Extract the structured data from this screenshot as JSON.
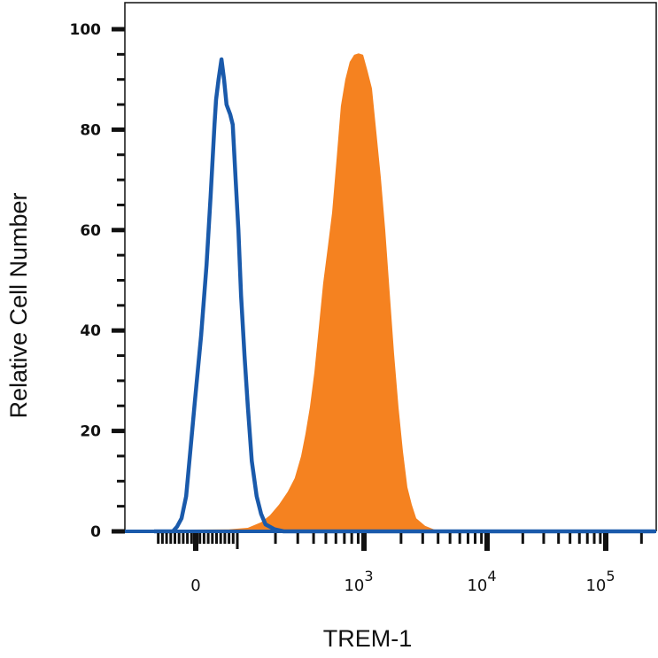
{
  "chart_data": {
    "type": "area",
    "title": "",
    "xlabel": "TREM-1",
    "ylabel": "Relative Cell Number",
    "x_scale": "logicle",
    "xlim": [
      -100,
      260000
    ],
    "ylim": [
      0,
      100
    ],
    "grid": false,
    "y_ticks": [
      0,
      20,
      40,
      60,
      80,
      100
    ],
    "x_ticks": [
      {
        "value": 0,
        "base": "0",
        "exp": ""
      },
      {
        "value": 1000,
        "base": "10",
        "exp": "3"
      },
      {
        "value": 10000,
        "base": "10",
        "exp": "4"
      },
      {
        "value": 100000,
        "base": "10",
        "exp": "5"
      }
    ],
    "series": [
      {
        "style": "filled",
        "color": "#f58220",
        "x": [
          -100,
          79,
          121,
          154,
          181,
          213,
          250,
          284,
          319,
          345,
          374,
          406,
          440,
          476,
          517,
          560,
          607,
          657,
          712,
          772,
          837,
          907,
          984,
          1069,
          1161,
          1261,
          1370,
          1488,
          1617,
          1756,
          1907,
          2072,
          2251,
          2445,
          2656,
          3134,
          3698,
          4363
        ],
        "y": [
          0.3,
          0.4,
          0.7,
          1.8,
          3.2,
          5.3,
          7.9,
          10.6,
          15,
          19.4,
          24.7,
          31.7,
          40.6,
          49.4,
          56.4,
          63.5,
          74,
          84.7,
          90,
          93.5,
          94.9,
          95.2,
          94.9,
          91.7,
          88.2,
          79.4,
          70.5,
          60,
          47.6,
          35.3,
          24.7,
          15.9,
          8.8,
          5.3,
          2.6,
          1.1,
          0.4,
          0
        ]
      },
      {
        "style": "outline",
        "color": "#1a5aab",
        "x": [
          -100,
          -55,
          -45,
          -34,
          -23,
          -13,
          -2,
          13,
          26,
          36,
          45,
          49,
          55,
          62,
          68,
          74,
          83,
          89,
          96,
          102,
          107,
          114,
          121,
          130,
          142,
          154,
          167,
          197,
          232,
          260000
        ],
        "y": [
          0,
          0,
          0.9,
          2.6,
          7,
          16,
          26,
          39,
          53,
          67,
          81,
          86,
          90,
          94,
          90,
          85,
          83,
          81,
          70,
          60,
          47,
          35,
          25,
          14,
          7,
          3.5,
          1.4,
          0.4,
          0,
          0
        ]
      }
    ]
  }
}
